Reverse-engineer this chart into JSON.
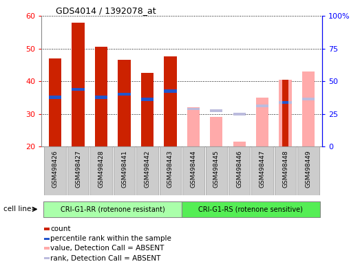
{
  "title": "GDS4014 / 1392078_at",
  "samples": [
    "GSM498426",
    "GSM498427",
    "GSM498428",
    "GSM498441",
    "GSM498442",
    "GSM498443",
    "GSM498444",
    "GSM498445",
    "GSM498446",
    "GSM498447",
    "GSM498448",
    "GSM498449"
  ],
  "group1_count": 6,
  "group2_count": 6,
  "group1_label": "CRI-G1-RR (rotenone resistant)",
  "group2_label": "CRI-G1-RS (rotenone sensitive)",
  "cell_line_label": "cell line",
  "ylim_left": [
    20,
    60
  ],
  "ylim_right": [
    0,
    100
  ],
  "yticks_left": [
    20,
    30,
    40,
    50,
    60
  ],
  "yticks_right": [
    0,
    25,
    50,
    75,
    100
  ],
  "yticklabels_right": [
    "0",
    "25",
    "50",
    "75",
    "100%"
  ],
  "count_values": [
    47,
    58,
    50.5,
    46.5,
    42.5,
    47.5,
    null,
    null,
    null,
    null,
    40.5,
    null
  ],
  "rank_values": [
    35,
    37.5,
    35,
    36,
    34.5,
    37,
    null,
    null,
    null,
    null,
    33.5,
    null
  ],
  "absent_value": [
    null,
    null,
    null,
    null,
    null,
    null,
    32,
    29,
    21.5,
    35,
    40.5,
    43
  ],
  "absent_rank": [
    null,
    null,
    null,
    null,
    null,
    null,
    31.5,
    31,
    30,
    32.5,
    33.5,
    34.5
  ],
  "bar_bottom": 20,
  "color_count": "#cc2200",
  "color_rank": "#2255cc",
  "color_absent_value": "#ffaaaa",
  "color_absent_rank": "#bbbbdd",
  "group1_color": "#aaffaa",
  "group2_color": "#55ee55",
  "tick_bg_color": "#cccccc",
  "legend_items": [
    [
      "#cc2200",
      "count"
    ],
    [
      "#2255cc",
      "percentile rank within the sample"
    ],
    [
      "#ffaaaa",
      "value, Detection Call = ABSENT"
    ],
    [
      "#bbbbdd",
      "rank, Detection Call = ABSENT"
    ]
  ]
}
